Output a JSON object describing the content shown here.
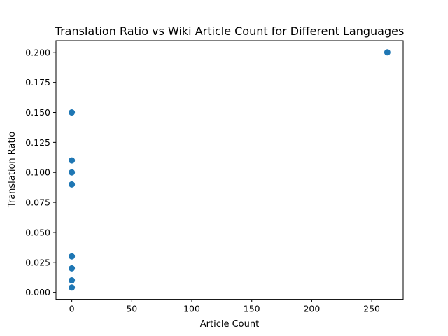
{
  "chart_data": {
    "type": "scatter",
    "title": "Translation Ratio vs Wiki Article Count for Different Languages",
    "xlabel": "Article Count",
    "ylabel": "Translation Ratio",
    "xlim": [
      -13.2,
      276.2
    ],
    "ylim": [
      -0.0058,
      0.2098
    ],
    "xticks": [
      0,
      50,
      100,
      150,
      200,
      250
    ],
    "xtick_labels": [
      "0",
      "50",
      "100",
      "150",
      "200",
      "250"
    ],
    "yticks": [
      0.0,
      0.025,
      0.05,
      0.075,
      0.1,
      0.125,
      0.15,
      0.175,
      0.2
    ],
    "ytick_labels": [
      "0.000",
      "0.025",
      "0.050",
      "0.075",
      "0.100",
      "0.125",
      "0.150",
      "0.175",
      "0.200"
    ],
    "grid": false,
    "marker_color": "#1f77b4",
    "points": [
      {
        "x": 263,
        "y": 0.2
      },
      {
        "x": 0,
        "y": 0.15
      },
      {
        "x": 0,
        "y": 0.11
      },
      {
        "x": 0,
        "y": 0.1
      },
      {
        "x": 0,
        "y": 0.09
      },
      {
        "x": 0,
        "y": 0.03
      },
      {
        "x": 0,
        "y": 0.02
      },
      {
        "x": 0,
        "y": 0.01
      },
      {
        "x": 0,
        "y": 0.004
      }
    ]
  }
}
